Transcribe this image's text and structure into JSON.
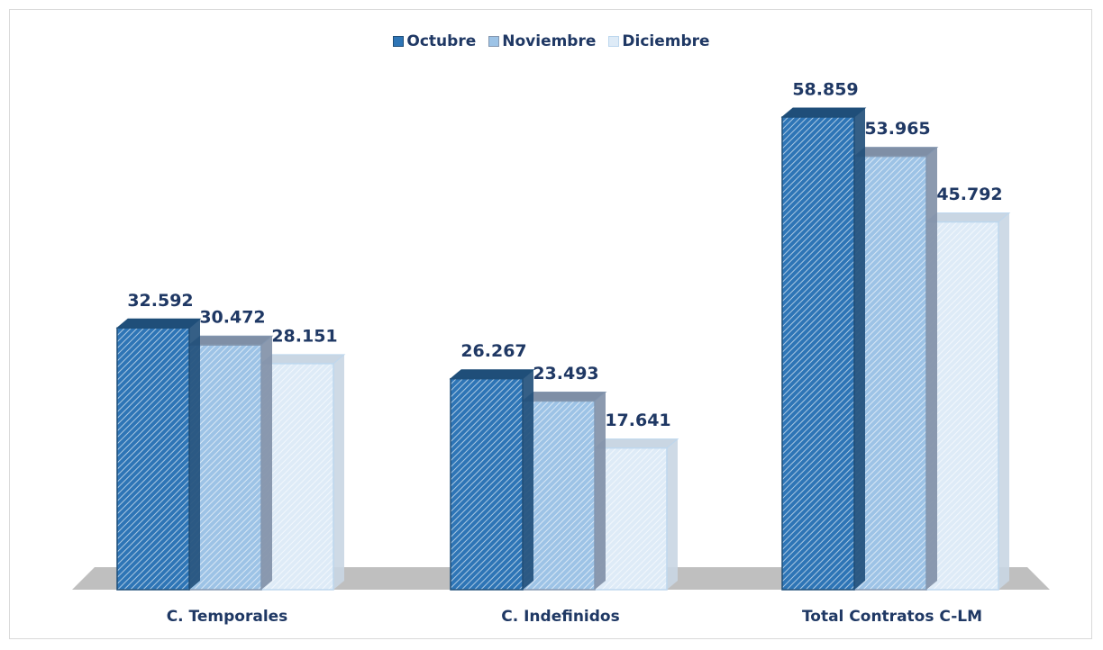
{
  "chart_data": {
    "type": "bar3d",
    "categories": [
      "C. Temporales",
      "C. Indefinidos",
      "Total Contratos C-LM"
    ],
    "series": [
      {
        "name": "Octubre",
        "color": "#2e75b6",
        "values": [
          32592,
          26267,
          58859
        ],
        "value_labels": [
          "32.592",
          "26.267",
          "58.859"
        ]
      },
      {
        "name": "Noviembre",
        "color": "#9dc3e6",
        "values": [
          30472,
          23493,
          53965
        ],
        "value_labels": [
          "30.472",
          "23.493",
          "53.965"
        ]
      },
      {
        "name": "Diciembre",
        "color": "#deebf7",
        "values": [
          28151,
          17641,
          45792
        ],
        "value_labels": [
          "28.151",
          "17.641",
          "45.792"
        ]
      }
    ],
    "legend": "top"
  }
}
